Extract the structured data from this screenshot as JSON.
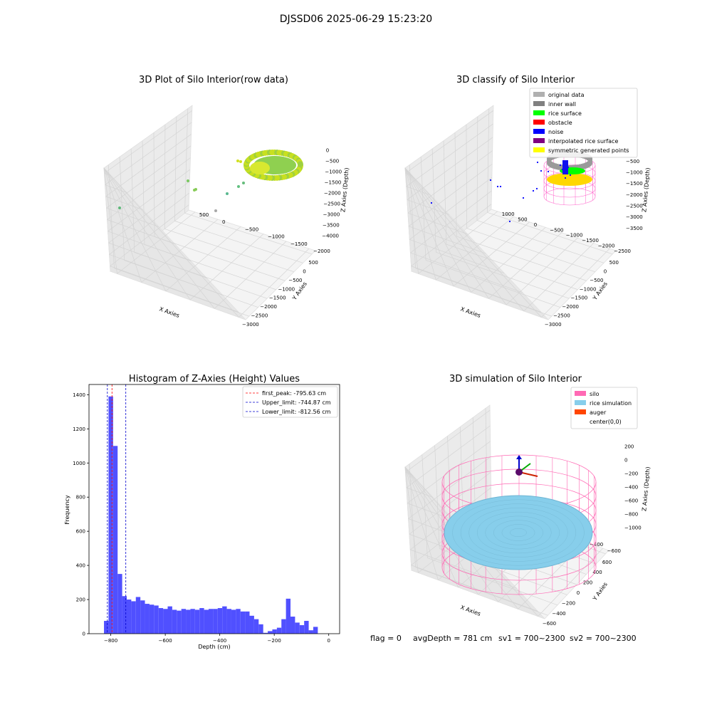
{
  "suptitle": "DJSSD06 2025-06-29 15:23:20",
  "footer": {
    "flag": "flag = 0",
    "avgdepth": "avgDepth = 781 cm",
    "sv1": "sv1 = 700~2300",
    "sv2": "sv2 = 700~2300"
  },
  "chart_data": [
    {
      "type": "scatter",
      "title": "3D Plot of Silo Interior(row data)",
      "xlabel": "X Axies",
      "ylabel": "Y Axies",
      "zlabel": "Z Axies (Depth)",
      "x_ticks": [
        "−3000",
        "−2500",
        "−2000",
        "−1500",
        "−1000",
        "−500",
        "0",
        "500"
      ],
      "y_ticks": [
        "500",
        "0",
        "−500",
        "−1000",
        "−1500",
        "−2000"
      ],
      "z_ticks": [
        "0",
        "−500",
        "−1000",
        "−1500",
        "−2000",
        "−2500",
        "−3000",
        "−3500",
        "−4000"
      ]
    },
    {
      "type": "scatter",
      "title": "3D classify of Silo Interior",
      "xlabel": "X Axies",
      "ylabel": "Y Axies",
      "zlabel": "Z Axies (Depth)",
      "x_ticks": [
        "−3000",
        "−2500",
        "−2000",
        "−1500",
        "−1000",
        "−500",
        "0",
        "500"
      ],
      "y_ticks": [
        "1000",
        "500",
        "0",
        "−500",
        "−1000",
        "−1500",
        "−2000",
        "−2500"
      ],
      "z_ticks": [
        "0",
        "−500",
        "−1000",
        "−1500",
        "−2000",
        "−2500",
        "−3000",
        "−3500"
      ],
      "legend": [
        {
          "name": "original data",
          "color": "#b0b0b0"
        },
        {
          "name": "inner wall",
          "color": "#808080"
        },
        {
          "name": "rice surface",
          "color": "#00ff00"
        },
        {
          "name": "obstacle",
          "color": "#ff0000"
        },
        {
          "name": "noise",
          "color": "#0000ff"
        },
        {
          "name": "interpolated rice surface",
          "color": "#800080"
        },
        {
          "name": "symmetric generated points",
          "color": "#ffff00"
        }
      ]
    },
    {
      "type": "bar",
      "title": "Histogram of Z-Axies (Height) Values",
      "xlabel": "Depth (cm)",
      "ylabel": "Frequency",
      "xlim": [
        -880,
        40
      ],
      "ylim": [
        0,
        1460
      ],
      "x_ticks": [
        -800,
        -600,
        -400,
        -200,
        0
      ],
      "x_tick_labels": [
        "−800",
        "−600",
        "−400",
        "−200",
        "0"
      ],
      "y_ticks": [
        0,
        200,
        400,
        600,
        800,
        1000,
        1200,
        1400
      ],
      "bin_start": -825,
      "bin_width": 16.7,
      "values": [
        75,
        1390,
        1100,
        350,
        220,
        200,
        190,
        215,
        195,
        175,
        170,
        165,
        150,
        145,
        160,
        140,
        135,
        145,
        140,
        145,
        140,
        150,
        140,
        145,
        145,
        150,
        160,
        145,
        140,
        145,
        130,
        130,
        105,
        85,
        55,
        5,
        15,
        25,
        35,
        85,
        205,
        100,
        65,
        50,
        75,
        20,
        40
      ],
      "bar_color": "#5050ff",
      "lines": [
        {
          "label": "first_peak: -795.63 cm",
          "x": -795.63,
          "color": "#ff0000"
        },
        {
          "label": "Upper_limit: -744.87 cm",
          "x": -744.87,
          "color": "#0000cc"
        },
        {
          "label": "Lower_limit: -812.56 cm",
          "x": -812.56,
          "color": "#0000cc"
        }
      ]
    },
    {
      "type": "scatter",
      "title": "3D simulation of Silo Interior",
      "xlabel": "X Axies",
      "ylabel": "Y Axies",
      "zlabel": "Z Axies (Depth)",
      "x_ticks": [
        "−600",
        "−400",
        "−200",
        "0",
        "200",
        "400",
        "600"
      ],
      "y_ticks": [
        "600",
        "400",
        "200",
        "0",
        "−200",
        "−400",
        "−600"
      ],
      "z_ticks": [
        "200",
        "0",
        "−200",
        "−400",
        "−600",
        "−800",
        "−1000"
      ],
      "legend": [
        {
          "name": "silo",
          "color": "#ff69b4"
        },
        {
          "name": "rice simulation",
          "color": "#87ceeb"
        },
        {
          "name": "auger",
          "color": "#ff4500"
        },
        {
          "name": "center(0,0)",
          "color": "#ffffff"
        }
      ]
    }
  ]
}
